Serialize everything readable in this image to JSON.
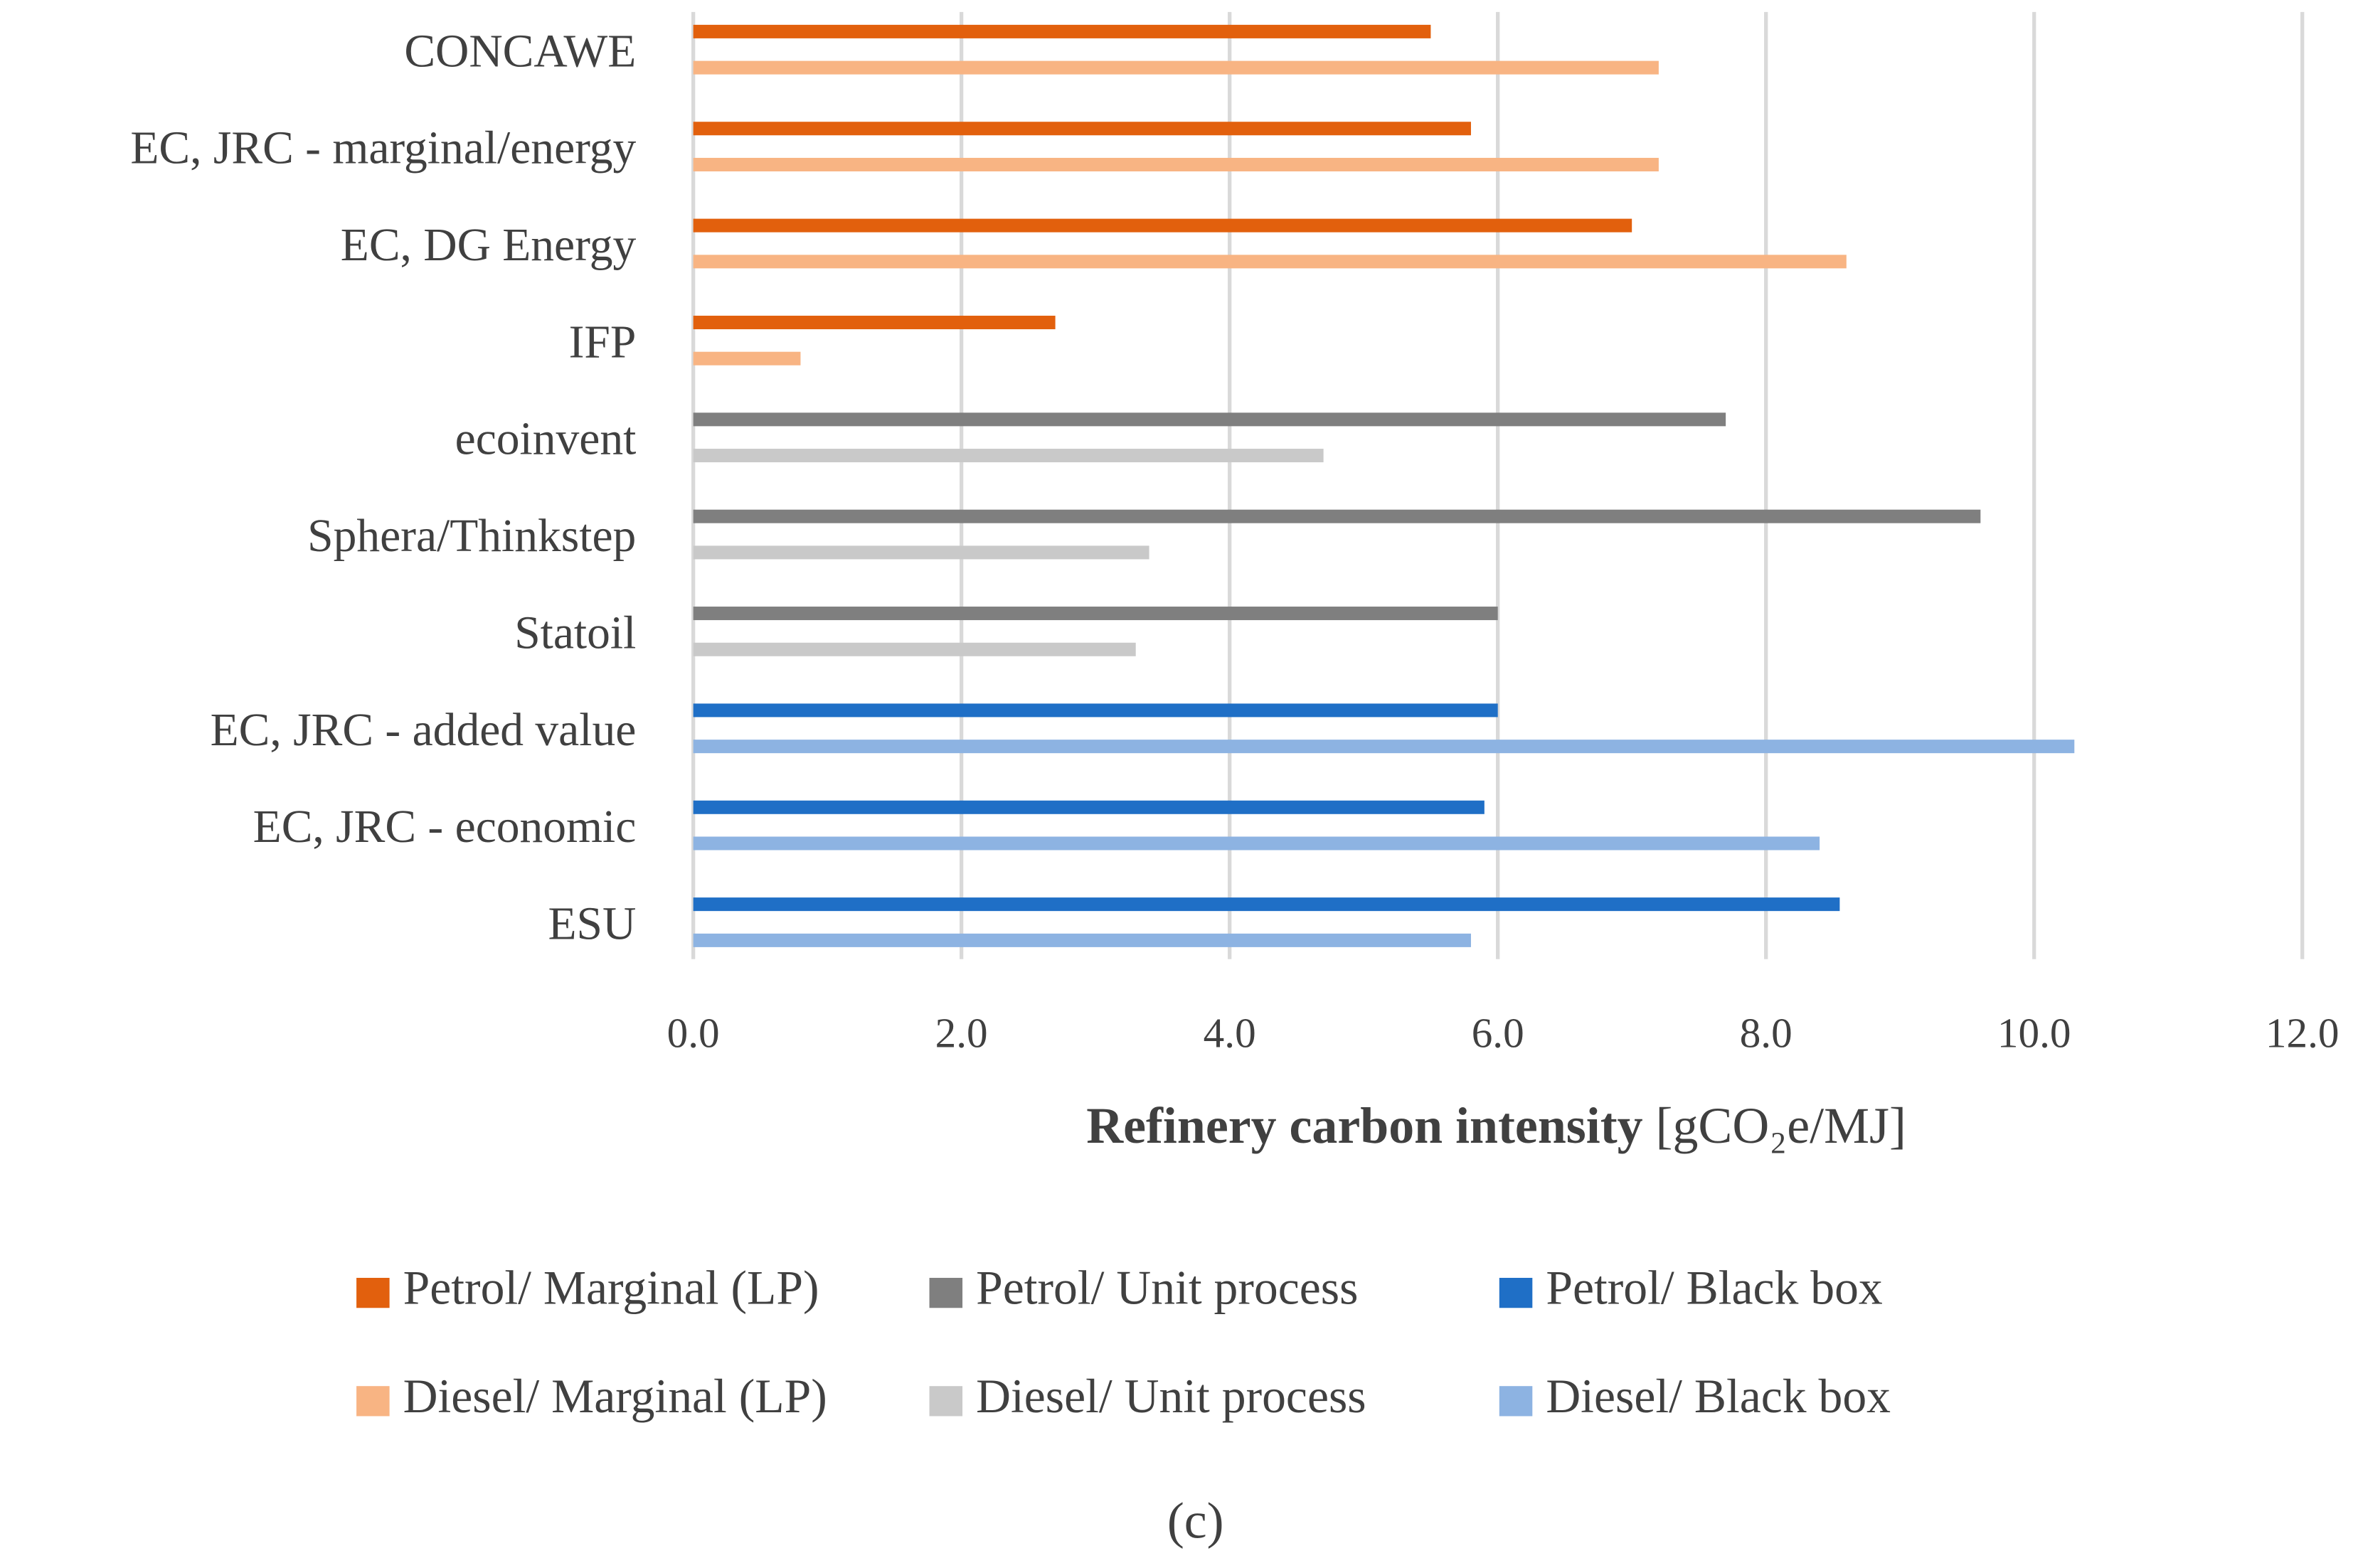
{
  "chart_data": {
    "type": "bar",
    "orientation": "horizontal",
    "categories": [
      "CONCAWE",
      "EC, JRC - marginal/energy",
      "EC, DG Energy",
      "IFP",
      "ecoinvent",
      "Sphera/Thinkstep",
      "Statoil",
      "EC, JRC - added value",
      "EC, JRC - economic",
      "ESU"
    ],
    "series": [
      {
        "name": "Petrol/ Marginal (LP)",
        "color": "#e2600d",
        "values": [
          5.5,
          5.8,
          7.0,
          2.7,
          null,
          null,
          null,
          null,
          null,
          null
        ]
      },
      {
        "name": "Petrol/ Unit process",
        "color": "#7f7f7f",
        "values": [
          null,
          null,
          null,
          null,
          7.7,
          9.6,
          6.0,
          null,
          null,
          null
        ]
      },
      {
        "name": "Petrol/ Black box",
        "color": "#1f6fc6",
        "values": [
          null,
          null,
          null,
          null,
          null,
          null,
          null,
          6.0,
          5.9,
          8.55
        ]
      },
      {
        "name": "Diesel/ Marginal (LP)",
        "color": "#f8b483",
        "values": [
          7.2,
          7.2,
          8.6,
          0.8,
          null,
          null,
          null,
          null,
          null,
          null
        ]
      },
      {
        "name": "Diesel/ Unit process",
        "color": "#c9c9c9",
        "values": [
          null,
          null,
          null,
          null,
          4.7,
          3.4,
          3.3,
          null,
          null,
          null
        ]
      },
      {
        "name": "Diesel/ Black box",
        "color": "#8db3e2",
        "values": [
          null,
          null,
          null,
          null,
          null,
          null,
          null,
          10.3,
          8.4,
          5.8
        ]
      }
    ],
    "xlim": [
      0,
      12
    ],
    "xticks": [
      {
        "value": 0,
        "label": "0.0"
      },
      {
        "value": 2,
        "label": "2.0"
      },
      {
        "value": 4,
        "label": "4.0"
      },
      {
        "value": 6,
        "label": "6.0"
      },
      {
        "value": 8,
        "label": "8.0"
      },
      {
        "value": 10,
        "label": "10.0"
      },
      {
        "value": 12,
        "label": "12.0"
      }
    ],
    "xlabel": "Refinery carbon intensity",
    "xlabel_unit": "[gCO₂e/MJ]",
    "caption": "(c)",
    "grid": true,
    "legend": "bottom"
  }
}
